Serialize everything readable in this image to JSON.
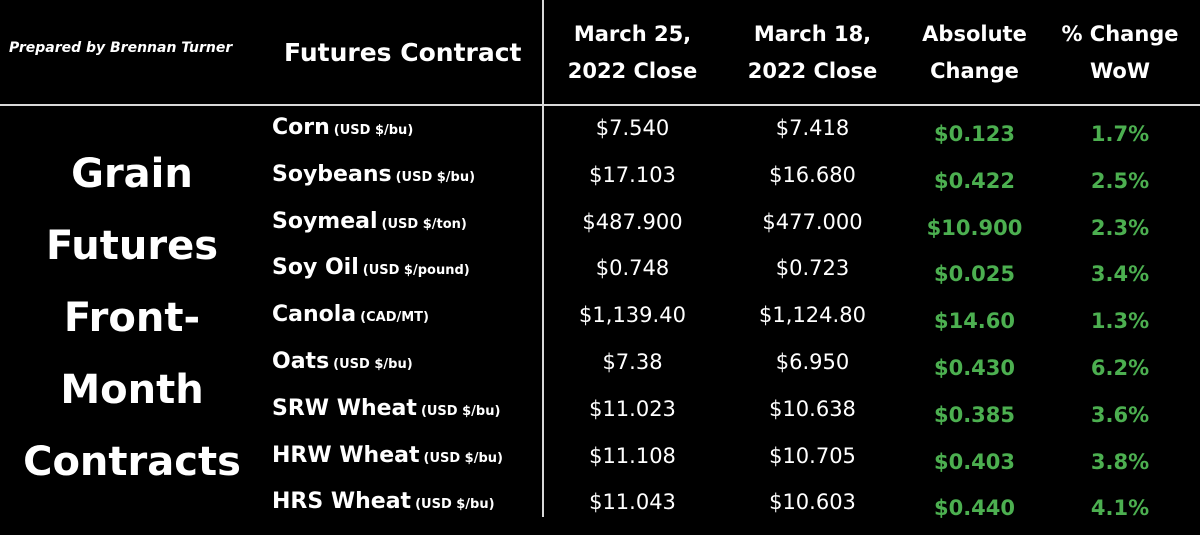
{
  "credit": "Prepared by Brennan Turner",
  "headers": {
    "contract": "Futures Contract",
    "close1": [
      "March 25,",
      "2022 Close"
    ],
    "close2": [
      "March 18,",
      "2022 Close"
    ],
    "abs_change": [
      "Absolute",
      "Change"
    ],
    "pct_change": [
      "% Change",
      "WoW"
    ]
  },
  "side_label": [
    "Grain",
    "Futures",
    "Front-",
    "Month",
    "Contracts"
  ],
  "colors": {
    "background": "#000000",
    "text": "#ffffff",
    "positive": "#4caf50",
    "divider": "#d9d9d9"
  },
  "chart_data": {
    "type": "table",
    "columns": [
      "Futures Contract",
      "March 25, 2022 Close",
      "March 18, 2022 Close",
      "Absolute Change",
      "% Change WoW"
    ],
    "rows": [
      {
        "name": "Corn",
        "unit": "(USD $/bu)",
        "mar25": "$7.540",
        "mar18": "$7.418",
        "abs": "$0.123",
        "pct": "1.7%"
      },
      {
        "name": "Soybeans",
        "unit": "(USD $/bu)",
        "mar25": "$17.103",
        "mar18": "$16.680",
        "abs": "$0.422",
        "pct": "2.5%"
      },
      {
        "name": "Soymeal",
        "unit": "(USD $/ton)",
        "mar25": "$487.900",
        "mar18": "$477.000",
        "abs": "$10.900",
        "pct": "2.3%"
      },
      {
        "name": "Soy Oil",
        "unit": "(USD $/pound)",
        "mar25": "$0.748",
        "mar18": "$0.723",
        "abs": "$0.025",
        "pct": "3.4%"
      },
      {
        "name": "Canola",
        "unit": "(CAD/MT)",
        "mar25": "$1,139.40",
        "mar18": "$1,124.80",
        "abs": "$14.60",
        "pct": "1.3%"
      },
      {
        "name": "Oats",
        "unit": "(USD $/bu)",
        "mar25": "$7.38",
        "mar18": "$6.950",
        "abs": "$0.430",
        "pct": "6.2%"
      },
      {
        "name": "SRW Wheat",
        "unit": "(USD $/bu)",
        "mar25": "$11.023",
        "mar18": "$10.638",
        "abs": "$0.385",
        "pct": "3.6%"
      },
      {
        "name": "HRW Wheat",
        "unit": "(USD $/bu)",
        "mar25": "$11.108",
        "mar18": "$10.705",
        "abs": "$0.403",
        "pct": "3.8%"
      },
      {
        "name": "HRS Wheat",
        "unit": "(USD $/bu)",
        "mar25": "$11.043",
        "mar18": "$10.603",
        "abs": "$0.440",
        "pct": "4.1%"
      }
    ]
  }
}
